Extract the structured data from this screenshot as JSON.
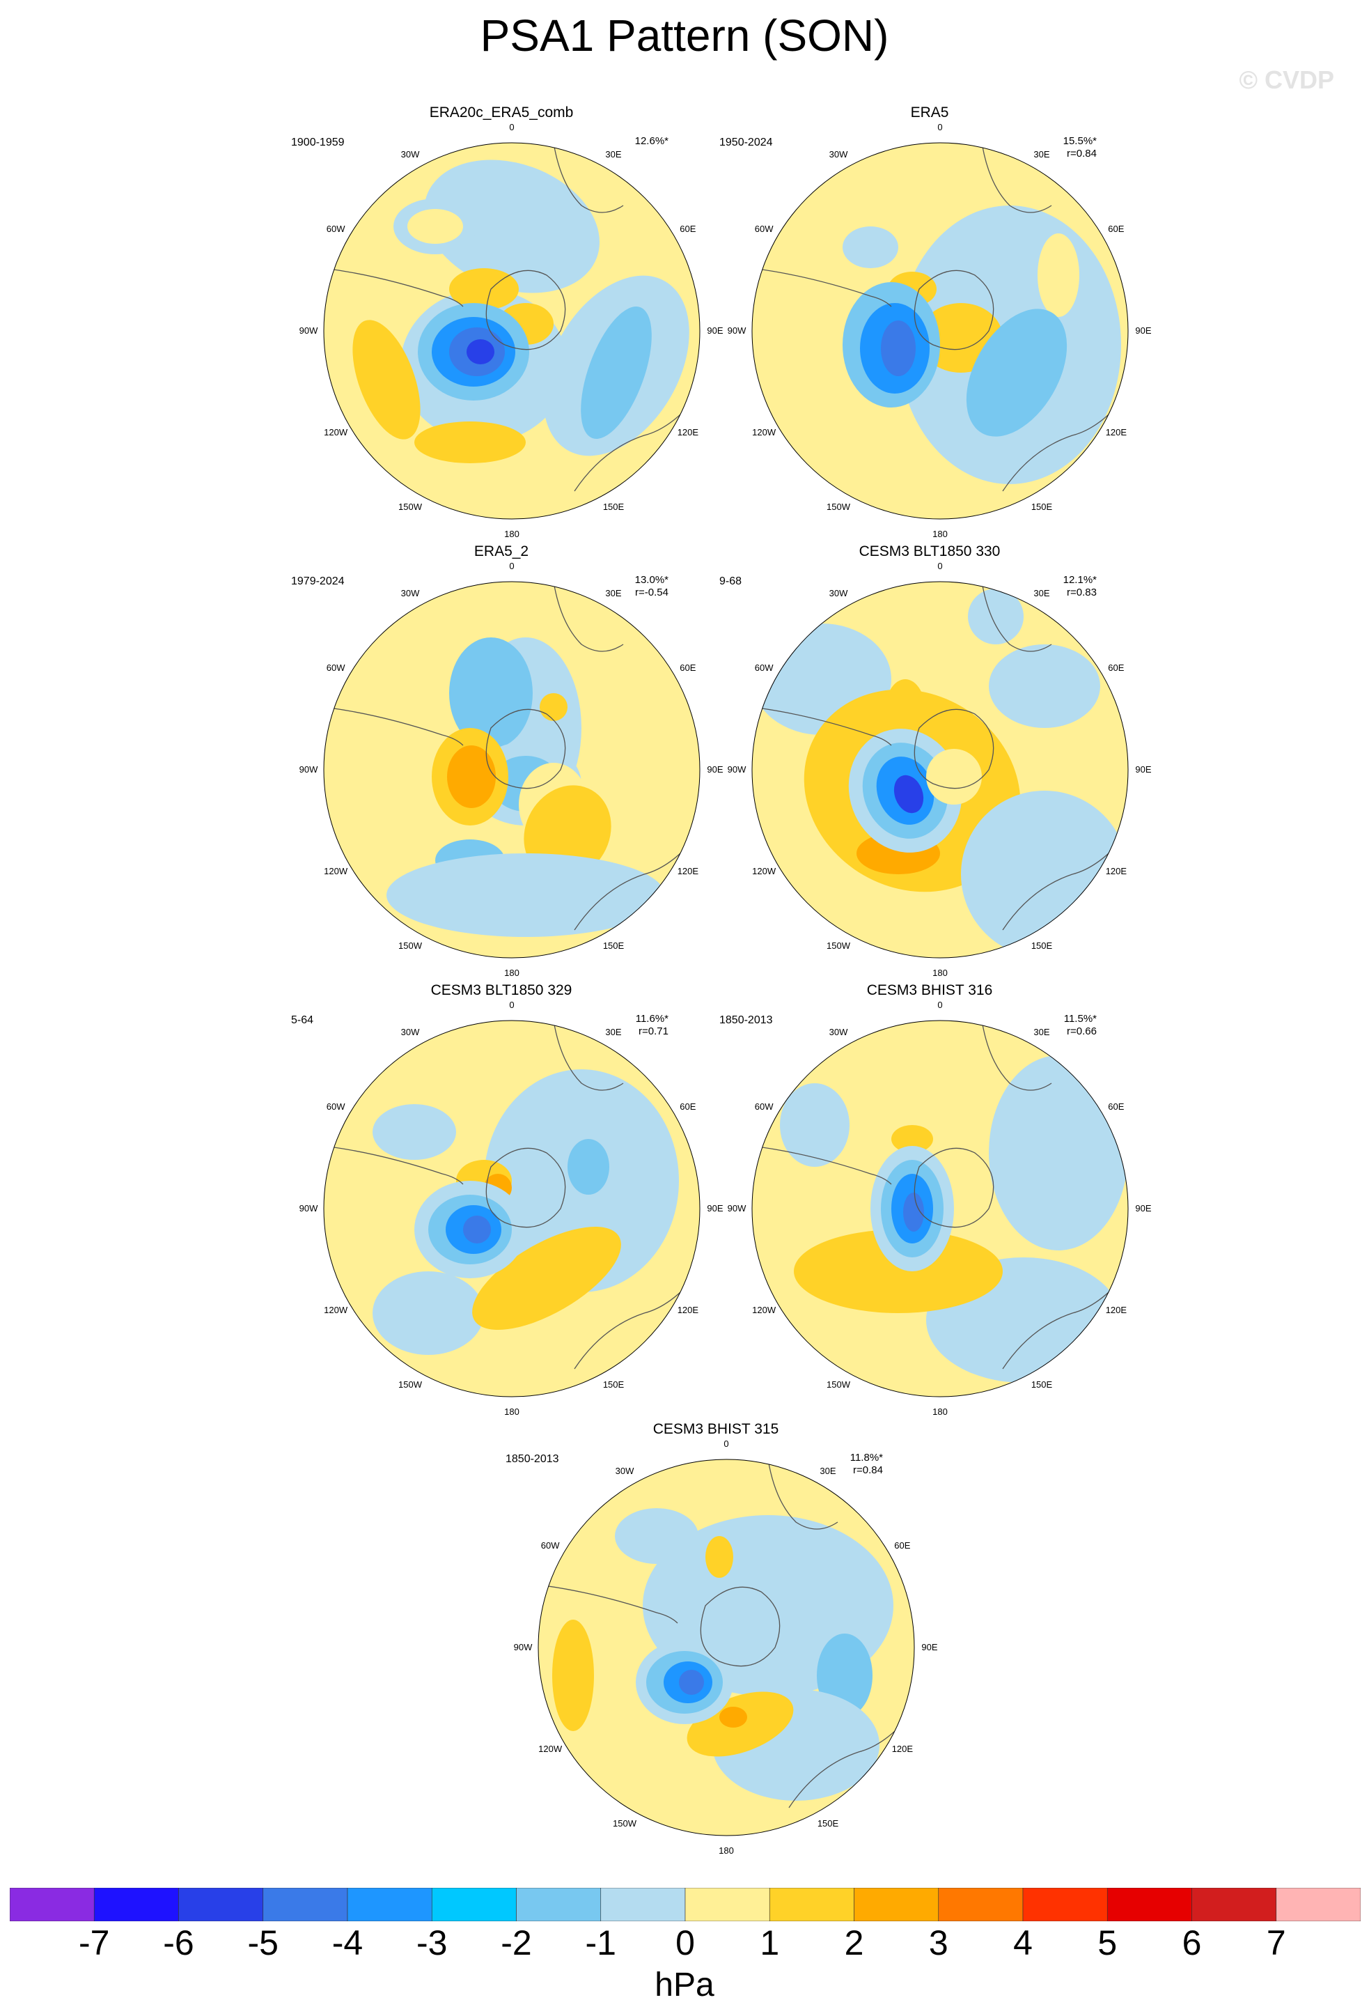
{
  "title": "PSA1 Pattern (SON)",
  "watermark": "© CVDP",
  "panels": [
    {
      "title": "ERA20c_ERA5_comb",
      "period": "1900-1959",
      "pct": "12.6%*",
      "r": ""
    },
    {
      "title": "ERA5",
      "period": "1950-2024",
      "pct": "15.5%*",
      "r": "r=0.84"
    },
    {
      "title": "ERA5_2",
      "period": "1979-2024",
      "pct": "13.0%*",
      "r": "r=-0.54"
    },
    {
      "title": "CESM3 BLT1850 330",
      "period": "9-68",
      "pct": "12.1%*",
      "r": "r=0.83"
    },
    {
      "title": "CESM3 BLT1850 329",
      "period": "5-64",
      "pct": "11.6%*",
      "r": "r=0.71"
    },
    {
      "title": "CESM3 BHIST 316",
      "period": "1850-2013",
      "pct": "11.5%*",
      "r": "r=0.66"
    },
    {
      "title": "CESM3 BHIST 315",
      "period": "1850-2013",
      "pct": "11.8%*",
      "r": "r=0.84"
    }
  ],
  "longitude_labels": {
    "lon_0": "0",
    "lon_30e": "30E",
    "lon_60e": "60E",
    "lon_90e": "90E",
    "lon_120e": "120E",
    "lon_150e": "150E",
    "lon_180": "180",
    "lon_150w": "150W",
    "lon_120w": "120W",
    "lon_90w": "90W",
    "lon_60w": "60W",
    "lon_30w": "30W"
  },
  "colorbar": {
    "unit": "hPa",
    "ticks": [
      "-7",
      "-6",
      "-5",
      "-4",
      "-3",
      "-2",
      "-1",
      "0",
      "1",
      "2",
      "3",
      "4",
      "5",
      "6",
      "7"
    ],
    "colors": [
      "#8a2be2",
      "#1e12ff",
      "#2840e8",
      "#3a7ae8",
      "#1e96ff",
      "#00c8ff",
      "#78c8f0",
      "#b4dcf0",
      "#fff096",
      "#ffd228",
      "#ffaa00",
      "#ff7800",
      "#ff3200",
      "#e60000",
      "#d21e1e",
      "#ffb4b4"
    ]
  }
}
